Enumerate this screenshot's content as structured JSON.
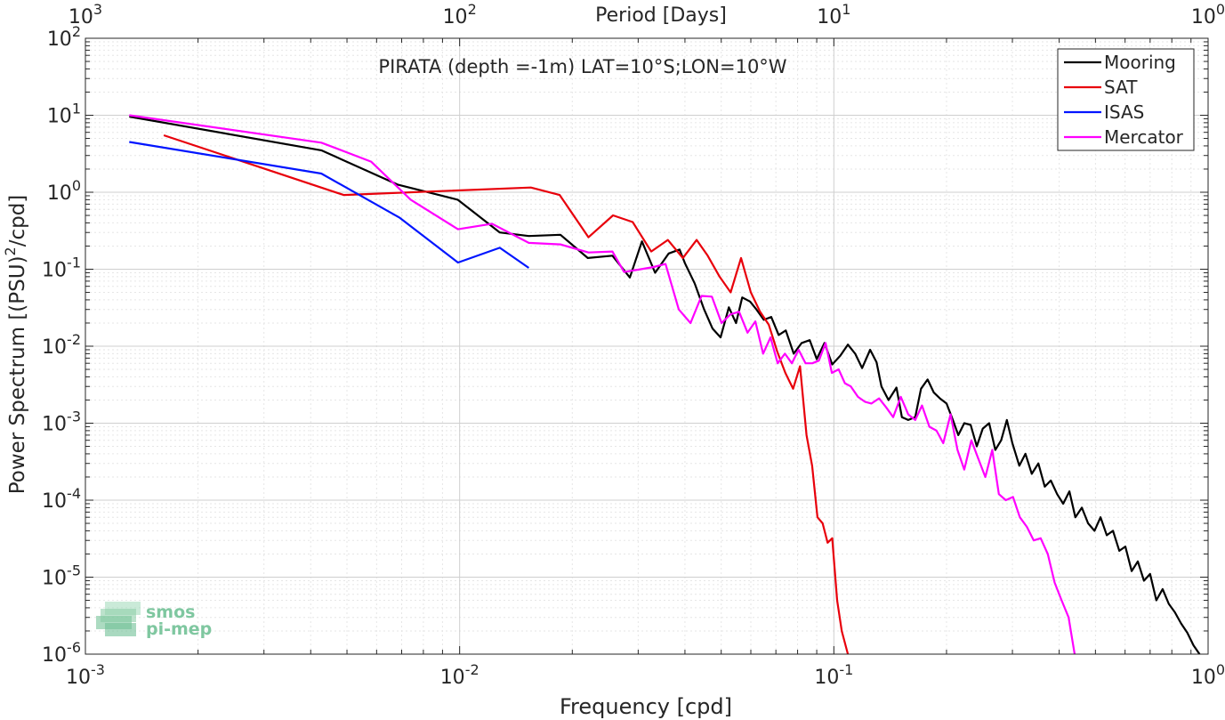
{
  "chart_data": {
    "type": "line",
    "title": "PIRATA (depth =-1m) LAT=10°S;LON=10°W",
    "xlabel": "Frequency [cpd]",
    "ylabel_main": "Power Spectrum [(PSU)",
    "ylabel_sup": "2",
    "ylabel_tail": "/cpd]",
    "top_axis_label": "Period [Days]",
    "x_scale": "log",
    "y_scale": "log",
    "xlim": [
      0.001,
      1
    ],
    "ylim": [
      1e-06,
      100
    ],
    "grid": true,
    "legend_position": "top-right",
    "x_ticks": [
      {
        "base": "10",
        "exp": "-3"
      },
      {
        "base": "10",
        "exp": "-2"
      },
      {
        "base": "10",
        "exp": "-1"
      },
      {
        "base": "10",
        "exp": "0"
      }
    ],
    "y_ticks": [
      {
        "base": "10",
        "exp": "-6"
      },
      {
        "base": "10",
        "exp": "-5"
      },
      {
        "base": "10",
        "exp": "-4"
      },
      {
        "base": "10",
        "exp": "-3"
      },
      {
        "base": "10",
        "exp": "-2"
      },
      {
        "base": "10",
        "exp": "-1"
      },
      {
        "base": "10",
        "exp": "0"
      },
      {
        "base": "10",
        "exp": "1"
      },
      {
        "base": "10",
        "exp": "2"
      }
    ],
    "top_ticks": [
      {
        "base": "10",
        "exp": "3"
      },
      {
        "base": "10",
        "exp": "2"
      },
      {
        "base": "10",
        "exp": "1"
      },
      {
        "base": "10",
        "exp": "0"
      }
    ],
    "series": [
      {
        "name": "Mooring",
        "color": "#000000",
        "x": [
          0.00131,
          0.00427,
          0.00685,
          0.00988,
          0.0128,
          0.0153,
          0.0186,
          0.022,
          0.0256,
          0.0285,
          0.0307,
          0.0333,
          0.0362,
          0.0387,
          0.04,
          0.0425,
          0.045,
          0.0474,
          0.0498,
          0.0524,
          0.0548,
          0.0569,
          0.0597,
          0.0621,
          0.065,
          0.068,
          0.0712,
          0.0744,
          0.0781,
          0.082,
          0.0862,
          0.09,
          0.0944,
          0.099,
          0.104,
          0.109,
          0.114,
          0.119,
          0.125,
          0.13,
          0.134,
          0.14,
          0.147,
          0.152,
          0.158,
          0.165,
          0.171,
          0.178,
          0.185,
          0.192,
          0.2,
          0.208,
          0.215,
          0.223,
          0.232,
          0.241,
          0.25,
          0.26,
          0.27,
          0.28,
          0.29,
          0.3,
          0.313,
          0.325,
          0.338,
          0.352,
          0.366,
          0.38,
          0.395,
          0.41,
          0.426,
          0.442,
          0.46,
          0.478,
          0.497,
          0.516,
          0.536,
          0.557,
          0.579,
          0.601,
          0.625,
          0.649,
          0.674,
          0.7,
          0.727,
          0.756,
          0.785,
          0.815,
          0.847,
          0.88,
          0.914,
          0.949
        ],
        "y": [
          9.6,
          3.5,
          1.25,
          0.8,
          0.3,
          0.27,
          0.28,
          0.14,
          0.15,
          0.078,
          0.23,
          0.09,
          0.16,
          0.18,
          0.12,
          0.065,
          0.03,
          0.017,
          0.013,
          0.032,
          0.02,
          0.043,
          0.038,
          0.03,
          0.022,
          0.024,
          0.014,
          0.016,
          0.008,
          0.011,
          0.012,
          0.0068,
          0.011,
          0.0058,
          0.0075,
          0.0105,
          0.008,
          0.0052,
          0.009,
          0.0062,
          0.003,
          0.002,
          0.0029,
          0.0012,
          0.0011,
          0.0012,
          0.0028,
          0.0037,
          0.0025,
          0.0021,
          0.0018,
          0.0011,
          0.0007,
          0.001,
          0.00095,
          0.0005,
          0.00085,
          0.001,
          0.00045,
          0.0006,
          0.0011,
          0.00055,
          0.00028,
          0.0004,
          0.00022,
          0.0003,
          0.00015,
          0.00018,
          0.00012,
          9e-05,
          0.00013,
          6e-05,
          8e-05,
          5e-05,
          4e-05,
          6e-05,
          3.5e-05,
          4e-05,
          2.2e-05,
          2.5e-05,
          1.2e-05,
          1.6e-05,
          9e-06,
          1.1e-05,
          5e-06,
          7e-06,
          4.5e-06,
          3.5e-06,
          2.5e-06,
          1.9e-06,
          1.3e-06,
          1e-06
        ]
      },
      {
        "name": "SAT",
        "color": "#e8000b",
        "x": [
          0.00162,
          0.0049,
          0.0155,
          0.0185,
          0.0221,
          0.0257,
          0.029,
          0.0325,
          0.036,
          0.0395,
          0.043,
          0.046,
          0.0495,
          0.053,
          0.0565,
          0.06,
          0.0635,
          0.067,
          0.0706,
          0.0742,
          0.0778,
          0.0812,
          0.0845,
          0.0875,
          0.0904,
          0.0933,
          0.0962,
          0.099,
          0.102,
          0.105,
          0.109
        ],
        "y": [
          5.5,
          0.92,
          1.15,
          0.92,
          0.26,
          0.5,
          0.41,
          0.17,
          0.24,
          0.14,
          0.24,
          0.15,
          0.08,
          0.05,
          0.14,
          0.05,
          0.028,
          0.019,
          0.0085,
          0.0045,
          0.0028,
          0.0055,
          0.0007,
          0.00028,
          6e-05,
          5e-05,
          2.8e-05,
          3.2e-05,
          5e-06,
          2e-06,
          1e-06
        ]
      },
      {
        "name": "ISAS",
        "color": "#0015ff",
        "x": [
          0.00131,
          0.00427,
          0.0069,
          0.0099,
          0.0128,
          0.0153
        ],
        "y": [
          4.5,
          1.75,
          0.47,
          0.122,
          0.19,
          0.104
        ]
      },
      {
        "name": "Mercator",
        "color": "#ff00ff",
        "x": [
          0.00131,
          0.00427,
          0.0058,
          0.0074,
          0.0099,
          0.0122,
          0.0153,
          0.0186,
          0.0221,
          0.0256,
          0.0275,
          0.0305,
          0.033,
          0.0355,
          0.0385,
          0.0414,
          0.0443,
          0.0472,
          0.0501,
          0.053,
          0.0558,
          0.0588,
          0.0617,
          0.0647,
          0.0677,
          0.0708,
          0.074,
          0.0772,
          0.0805,
          0.084,
          0.0876,
          0.0912,
          0.095,
          0.0988,
          0.103,
          0.107,
          0.111,
          0.116,
          0.121,
          0.126,
          0.132,
          0.138,
          0.144,
          0.151,
          0.158,
          0.165,
          0.172,
          0.18,
          0.188,
          0.196,
          0.205,
          0.214,
          0.223,
          0.233,
          0.243,
          0.254,
          0.265,
          0.276,
          0.288,
          0.301,
          0.314,
          0.328,
          0.342,
          0.357,
          0.373,
          0.389,
          0.406,
          0.424,
          0.432,
          0.44
        ],
        "y": [
          10.0,
          4.4,
          2.5,
          0.8,
          0.33,
          0.39,
          0.22,
          0.21,
          0.165,
          0.17,
          0.092,
          0.1,
          0.107,
          0.117,
          0.03,
          0.02,
          0.045,
          0.044,
          0.02,
          0.026,
          0.028,
          0.015,
          0.021,
          0.008,
          0.013,
          0.006,
          0.008,
          0.006,
          0.009,
          0.006,
          0.006,
          0.0065,
          0.011,
          0.0045,
          0.005,
          0.0033,
          0.003,
          0.0022,
          0.0019,
          0.0018,
          0.0021,
          0.0016,
          0.0012,
          0.0022,
          0.0013,
          0.0011,
          0.0017,
          0.0009,
          0.0008,
          0.00055,
          0.0013,
          0.00045,
          0.00025,
          0.0006,
          0.00035,
          0.0002,
          0.00045,
          0.00012,
          0.0001,
          0.00011,
          6e-05,
          4.5e-05,
          3e-05,
          3.2e-05,
          2e-05,
          8.5e-06,
          5e-06,
          3e-06,
          1.7e-06,
          1e-06
        ]
      }
    ]
  },
  "watermark": {
    "line1": "smos",
    "line2": "pi-mep",
    "color": "#7fc7a0"
  }
}
